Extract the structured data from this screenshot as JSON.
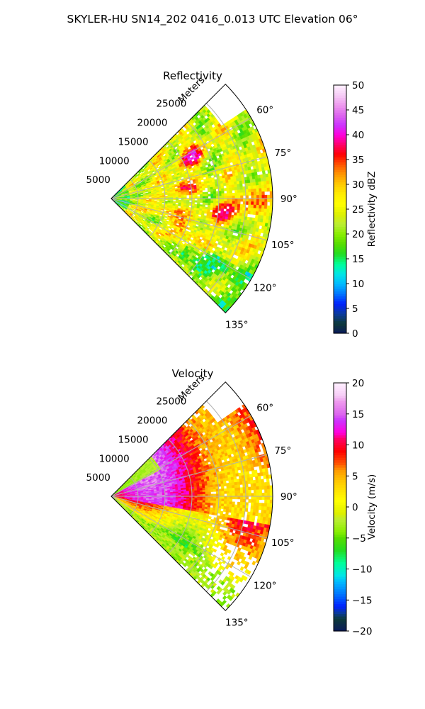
{
  "figure": {
    "title": "SKYLER-HU  SN14_202  0416_0.013 UTC Elevation 06°"
  },
  "chart_data": [
    {
      "type": "heatmap",
      "title": "Reflectivity",
      "projection": "polar-sector",
      "radial_axis_label": "Meters",
      "radial_ticks": [
        5000,
        10000,
        15000,
        20000,
        25000
      ],
      "radial_tick_labels": [
        "5000",
        "10000",
        "15000",
        "20000",
        "25000"
      ],
      "range_max_m": 30000,
      "azimuth_range_deg": [
        45,
        135
      ],
      "azimuth_ticks": [
        60,
        75,
        90,
        105,
        120,
        135
      ],
      "azimuth_tick_labels": [
        "60°",
        "75°",
        "90°",
        "105°",
        "120°",
        "135°"
      ],
      "colorbar": {
        "label": "Reflectivity dBZ",
        "min": 0,
        "max": 50,
        "ticks": [
          0,
          5,
          10,
          15,
          20,
          25,
          30,
          35,
          40,
          45,
          50
        ],
        "tick_labels": [
          "0",
          "5",
          "10",
          "15",
          "20",
          "25",
          "30",
          "35",
          "40",
          "45",
          "50"
        ],
        "stops": [
          {
            "v": 0,
            "c": "#0b1a5c"
          },
          {
            "v": 2,
            "c": "#0d3a3a"
          },
          {
            "v": 4,
            "c": "#0a3aa0"
          },
          {
            "v": 6,
            "c": "#0022ff"
          },
          {
            "v": 8,
            "c": "#0077ff"
          },
          {
            "v": 10,
            "c": "#00bbff"
          },
          {
            "v": 12,
            "c": "#00e6e6"
          },
          {
            "v": 14,
            "c": "#00ff99"
          },
          {
            "v": 16,
            "c": "#22dd22"
          },
          {
            "v": 18,
            "c": "#55dd00"
          },
          {
            "v": 20,
            "c": "#88ee00"
          },
          {
            "v": 22,
            "c": "#bbee33"
          },
          {
            "v": 24,
            "c": "#ddf000"
          },
          {
            "v": 26,
            "c": "#ffff00"
          },
          {
            "v": 28,
            "c": "#ffee00"
          },
          {
            "v": 30,
            "c": "#ffcc00"
          },
          {
            "v": 32,
            "c": "#ff9900"
          },
          {
            "v": 34,
            "c": "#ff5500"
          },
          {
            "v": 36,
            "c": "#ff0000"
          },
          {
            "v": 38,
            "c": "#ff0066"
          },
          {
            "v": 40,
            "c": "#ff00dd"
          },
          {
            "v": 42,
            "c": "#cc33ff"
          },
          {
            "v": 44,
            "c": "#dd66ee"
          },
          {
            "v": 46,
            "c": "#ee99ee"
          },
          {
            "v": 48,
            "c": "#f6ccf6"
          },
          {
            "v": 50,
            "c": "#fff0ff"
          }
        ]
      }
    },
    {
      "type": "heatmap",
      "title": "Velocity",
      "projection": "polar-sector",
      "radial_axis_label": "Meters",
      "radial_ticks": [
        5000,
        10000,
        15000,
        20000,
        25000
      ],
      "radial_tick_labels": [
        "5000",
        "10000",
        "15000",
        "20000",
        "25000"
      ],
      "range_max_m": 30000,
      "azimuth_range_deg": [
        45,
        135
      ],
      "azimuth_ticks": [
        60,
        75,
        90,
        105,
        120,
        135
      ],
      "azimuth_tick_labels": [
        "60°",
        "75°",
        "90°",
        "105°",
        "120°",
        "135°"
      ],
      "colorbar": {
        "label": "Velocity (m/s)",
        "min": -20,
        "max": 20,
        "ticks": [
          -20,
          -15,
          -10,
          -5,
          0,
          5,
          10,
          15,
          20
        ],
        "tick_labels": [
          "−20",
          "−15",
          "−10",
          "−5",
          "0",
          "5",
          "10",
          "15",
          "20"
        ],
        "stops": [
          {
            "v": -20,
            "c": "#0b1a5c"
          },
          {
            "v": -18,
            "c": "#0d3a3a"
          },
          {
            "v": -17,
            "c": "#0a3aa0"
          },
          {
            "v": -16,
            "c": "#0022ff"
          },
          {
            "v": -14,
            "c": "#0077ff"
          },
          {
            "v": -12,
            "c": "#00bbff"
          },
          {
            "v": -11,
            "c": "#00e6e6"
          },
          {
            "v": -9,
            "c": "#00ff99"
          },
          {
            "v": -7,
            "c": "#22dd22"
          },
          {
            "v": -5,
            "c": "#55dd00"
          },
          {
            "v": -4,
            "c": "#88ee00"
          },
          {
            "v": -2,
            "c": "#bbee33"
          },
          {
            "v": -1,
            "c": "#ddf000"
          },
          {
            "v": 1,
            "c": "#ffff00"
          },
          {
            "v": 2,
            "c": "#ffee00"
          },
          {
            "v": 4,
            "c": "#ffcc00"
          },
          {
            "v": 6,
            "c": "#ff9900"
          },
          {
            "v": 7,
            "c": "#ff5500"
          },
          {
            "v": 9,
            "c": "#ff0000"
          },
          {
            "v": 11,
            "c": "#ff0066"
          },
          {
            "v": 12,
            "c": "#ff00dd"
          },
          {
            "v": 14,
            "c": "#cc33ff"
          },
          {
            "v": 15,
            "c": "#dd66ee"
          },
          {
            "v": 17,
            "c": "#ee99ee"
          },
          {
            "v": 18,
            "c": "#f6ccf6"
          },
          {
            "v": 20,
            "c": "#fff0ff"
          }
        ]
      }
    }
  ]
}
